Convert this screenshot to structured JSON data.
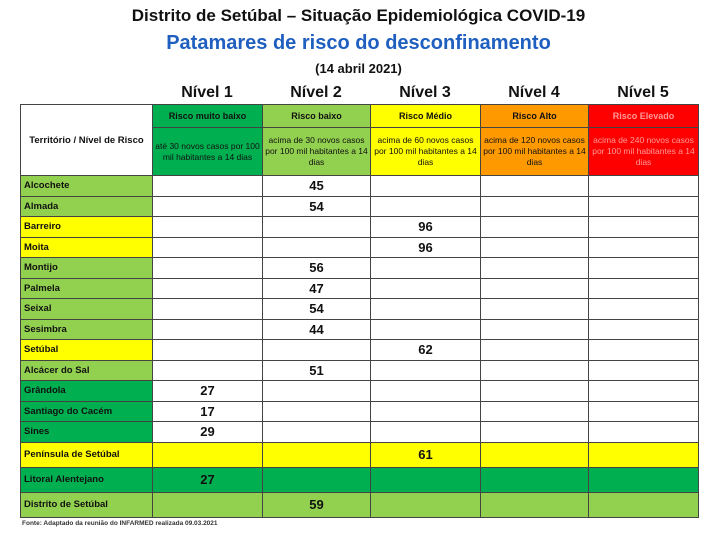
{
  "title": "Distrito de Setúbal – Situação Epidemiológica COVID-19",
  "subtitle": "Patamares de risco do desconfinamento",
  "date": "(14 abril 2021)",
  "header_cell": "Território / Nível de Risco",
  "levels": [
    {
      "label": "Nível 1",
      "risk": "Risco muito baixo",
      "desc": "até 30 novos casos por 100 mil habitantes a 14 dias",
      "color": "#00b050",
      "text": "#111"
    },
    {
      "label": "Nível 2",
      "risk": "Risco baixo",
      "desc": "acima de 30 novos casos por 100 mil habitantes a 14 dias",
      "color": "#92d050",
      "text": "#111"
    },
    {
      "label": "Nível 3",
      "risk": "Risco Médio",
      "desc": "acima de 60 novos casos por 100 mil habitantes a 14 dias",
      "color": "#ffff00",
      "text": "#111"
    },
    {
      "label": "Nível 4",
      "risk": "Risco Alto",
      "desc": "acima de 120 novos casos por 100 mil habitantes a 14 dias",
      "color": "#ff9900",
      "text": "#111"
    },
    {
      "label": "Nível 5",
      "risk": "Risco Elevado",
      "desc": "acima de 240 novos casos por 100 mil habitantes a 14 dias",
      "color": "#ff0000",
      "text": "#ff9999"
    }
  ],
  "rows": [
    {
      "name": "Alcochete",
      "level": 2,
      "value": "45"
    },
    {
      "name": "Almada",
      "level": 2,
      "value": "54"
    },
    {
      "name": "Barreiro",
      "level": 3,
      "value": "96"
    },
    {
      "name": "Moita",
      "level": 3,
      "value": "96"
    },
    {
      "name": "Montijo",
      "level": 2,
      "value": "56"
    },
    {
      "name": "Palmela",
      "level": 2,
      "value": "47"
    },
    {
      "name": "Seixal",
      "level": 2,
      "value": "54"
    },
    {
      "name": "Sesimbra",
      "level": 2,
      "value": "44"
    },
    {
      "name": "Setúbal",
      "level": 3,
      "value": "62"
    },
    {
      "name": "Alcácer do Sal",
      "level": 2,
      "value": "51"
    },
    {
      "name": "Grândola",
      "level": 1,
      "value": "27"
    },
    {
      "name": "Santiago do Cacém",
      "level": 1,
      "value": "17"
    },
    {
      "name": "Sines",
      "level": 1,
      "value": "29"
    }
  ],
  "summary": [
    {
      "name": "Península de Setúbal",
      "level": 3,
      "value": "61"
    },
    {
      "name": "Litoral Alentejano",
      "level": 1,
      "value": "27"
    },
    {
      "name": "Distrito de Setúbal",
      "level": 2,
      "value": "59"
    }
  ],
  "source": "Fonte: Adaptado da reunião do INFARMED realizada 09.03.2021"
}
